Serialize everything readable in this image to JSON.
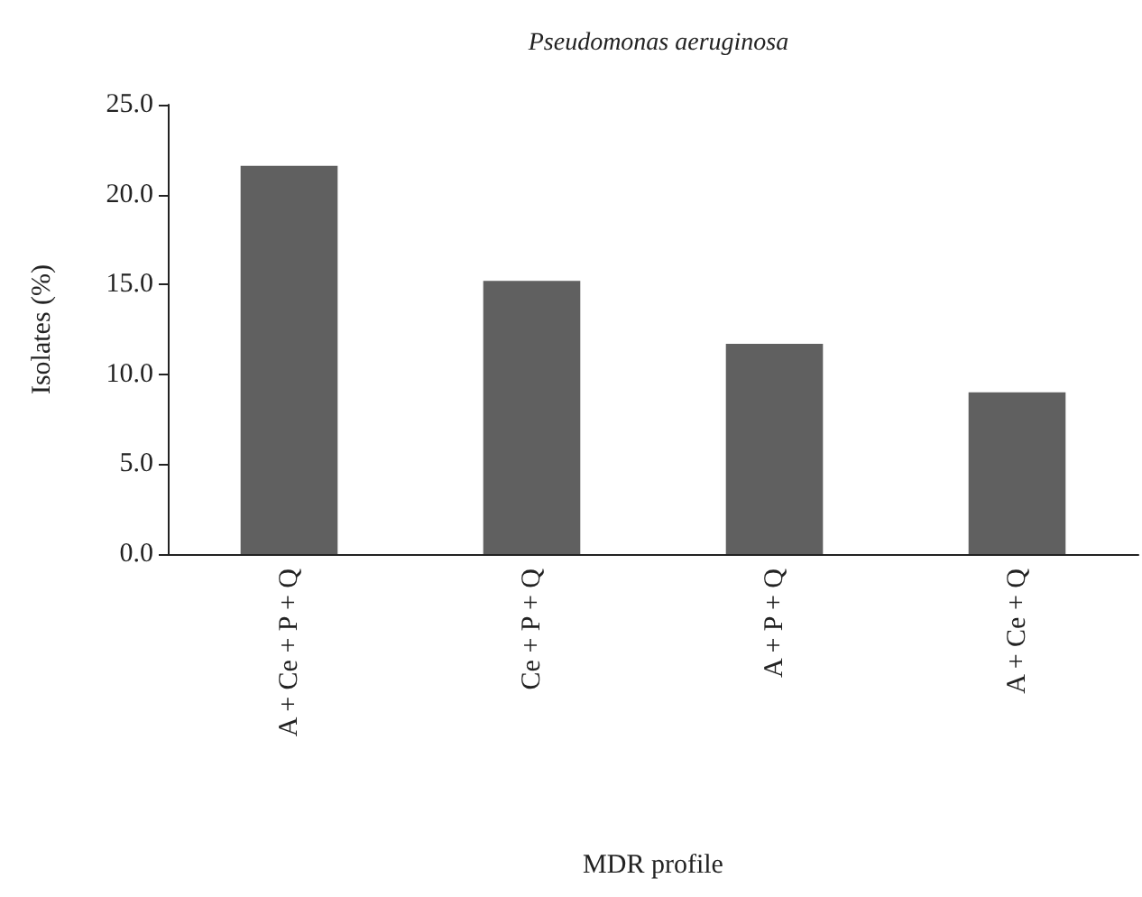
{
  "chart_data": {
    "type": "bar",
    "title": "Pseudomonas aeruginosa",
    "xlabel": "MDR profile",
    "ylabel": "Isolates (%)",
    "categories": [
      "A + Ce + P + Q",
      "Ce + P + Q",
      "A + P + Q",
      "A + Ce + Q"
    ],
    "values": [
      21.6,
      15.2,
      11.7,
      9.0
    ],
    "color": "#606060",
    "ylim": [
      0,
      25
    ],
    "yticks": [
      {
        "value": 0,
        "label": "0.0"
      },
      {
        "value": 5,
        "label": "5.0"
      },
      {
        "value": 10,
        "label": "10.0"
      },
      {
        "value": 15,
        "label": "15.0"
      },
      {
        "value": 20,
        "label": "20.0"
      },
      {
        "value": 25,
        "label": "25.0"
      }
    ],
    "grid": false
  }
}
